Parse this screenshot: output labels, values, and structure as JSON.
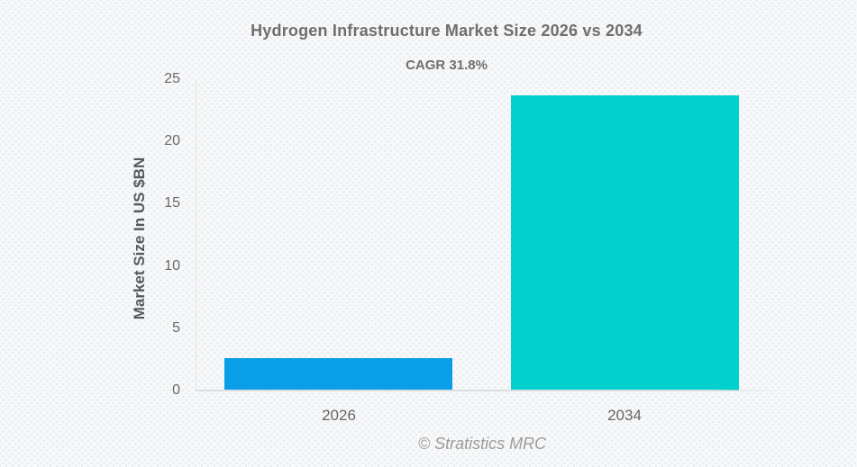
{
  "header": {
    "title": "Hydrogen Infrastructure Market Size 2026 vs 2034",
    "subtitle": "CAGR 31.8%"
  },
  "chart_data": {
    "type": "bar",
    "title": "Hydrogen Infrastructure Market Size 2026 vs 2034",
    "subtitle": "CAGR 31.8%",
    "categories": [
      "2026",
      "2034"
    ],
    "values": [
      2.6,
      23.7
    ],
    "series": [
      {
        "name": "Market Size In US $BN",
        "values": [
          2.6,
          23.7
        ]
      }
    ],
    "xlabel": "",
    "ylabel": "Market Size In US $BN",
    "ylim": [
      0,
      25
    ],
    "yticks": [
      0,
      5,
      10,
      15,
      20,
      25
    ],
    "grid": false,
    "legend": "none",
    "bar_colors": [
      "#0a9ee9",
      "#00d1cc"
    ]
  },
  "footer": {
    "credit": "© Stratistics MRC"
  },
  "colors": {
    "background": "#f7f8f9",
    "dot_pattern": "#e7e9ec",
    "axis_line": "#dcdddf",
    "title_text": "#6e6e6e",
    "tick_text": "#6a6a6a",
    "watermark_text": "#9c9c9c",
    "bar_2026": "#0a9ee9",
    "bar_2034": "#00d1cc"
  }
}
